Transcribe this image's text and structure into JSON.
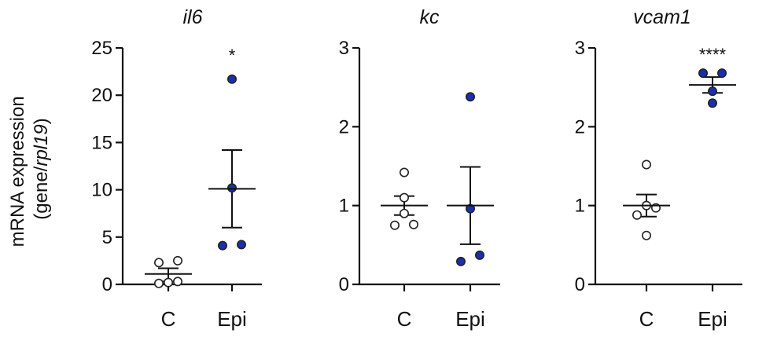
{
  "ylabel": {
    "line1": "mRNA expression",
    "line2_prefix": "(gene/",
    "line2_italic": "rpl19",
    "line2_suffix": ")"
  },
  "colors": {
    "control_fill": "#ffffff",
    "epi_fill": "#1a2fb0",
    "point_stroke": "#222222"
  },
  "chart_data": [
    {
      "type": "scatter",
      "title": "il6",
      "categories": [
        "C",
        "Epi"
      ],
      "ylim": [
        0,
        25
      ],
      "yticks": [
        "0",
        "5",
        "10",
        "15",
        "20",
        "25"
      ],
      "grid": false,
      "series": [
        {
          "category": "C",
          "values": [
            0.1,
            0.2,
            0.3,
            2.3,
            2.5
          ],
          "mean": 1.1,
          "sem_low": 0.3,
          "sem_high": 1.7
        },
        {
          "category": "Epi",
          "values": [
            4.1,
            4.2,
            10.2,
            21.7
          ],
          "mean": 10.1,
          "sem_low": 6.0,
          "sem_high": 14.2,
          "significance": "*"
        }
      ]
    },
    {
      "type": "scatter",
      "title": "kc",
      "categories": [
        "C",
        "Epi"
      ],
      "ylim": [
        0,
        3
      ],
      "yticks": [
        "0",
        "1",
        "2",
        "3"
      ],
      "grid": false,
      "series": [
        {
          "category": "C",
          "values": [
            0.75,
            0.76,
            0.9,
            1.1,
            1.42
          ],
          "mean": 1.0,
          "sem_low": 0.88,
          "sem_high": 1.12
        },
        {
          "category": "Epi",
          "values": [
            0.29,
            0.37,
            0.96,
            2.38
          ],
          "mean": 1.0,
          "sem_low": 0.51,
          "sem_high": 1.49
        }
      ]
    },
    {
      "type": "scatter",
      "title": "vcam1",
      "categories": [
        "C",
        "Epi"
      ],
      "ylim": [
        0,
        3
      ],
      "yticks": [
        "0",
        "1",
        "2",
        "3"
      ],
      "grid": false,
      "series": [
        {
          "category": "C",
          "values": [
            0.62,
            0.88,
            0.97,
            1.0,
            1.52
          ],
          "mean": 1.0,
          "sem_low": 0.86,
          "sem_high": 1.14
        },
        {
          "category": "Epi",
          "values": [
            2.3,
            2.45,
            2.68,
            2.68
          ],
          "mean": 2.53,
          "sem_low": 2.43,
          "sem_high": 2.63,
          "significance": "****"
        }
      ]
    }
  ]
}
